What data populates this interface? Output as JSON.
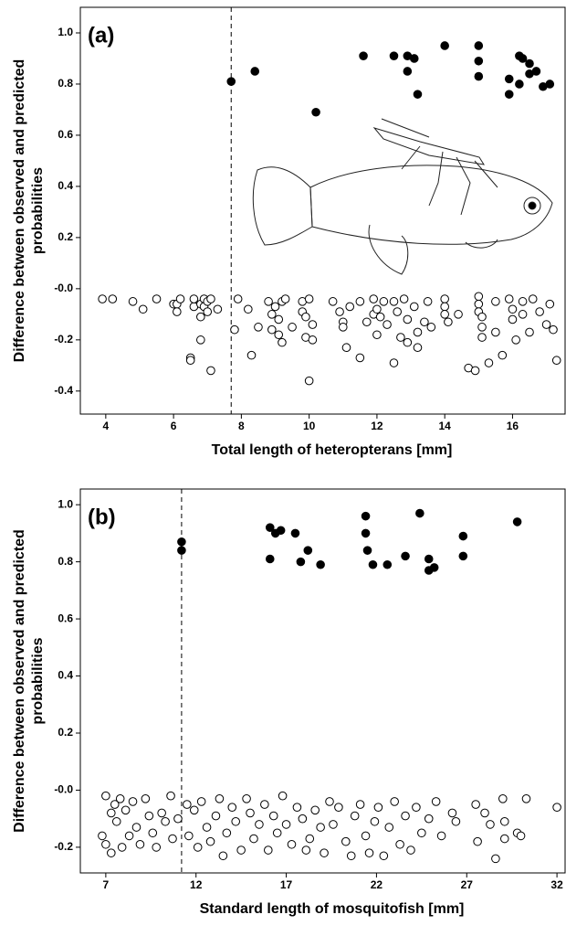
{
  "chart_data": [
    {
      "type": "scatter",
      "panel_label": "(a)",
      "xlabel": "Total length of heteropterans [mm]",
      "ylabel": [
        "Difference between observed and predicted",
        "probabilities"
      ],
      "xlim": [
        3.25,
        17.55
      ],
      "ylim": [
        -0.49,
        1.1
      ],
      "xticks": [
        4,
        6,
        8,
        10,
        12,
        14,
        16
      ],
      "yticks": [
        {
          "value": 1,
          "label": "1.0"
        },
        0.8,
        0.6,
        0.4,
        0.2,
        {
          "value": 0,
          "label": "-0.0"
        },
        -0.2,
        -0.4
      ],
      "vline": 7.7,
      "series": [
        {
          "filled": true,
          "color": "#000000",
          "x": [
            7.7,
            8.4,
            10.2,
            11.6,
            12.5,
            12.9,
            12.9,
            13.1,
            13.2,
            14.0,
            15.0,
            15.0,
            15.0,
            15.9,
            15.9,
            16.2,
            16.2,
            16.3,
            16.5,
            16.5,
            16.7,
            16.9,
            17.1
          ],
          "values": [
            0.81,
            0.85,
            0.69,
            0.91,
            0.91,
            0.91,
            0.85,
            0.9,
            0.76,
            0.95,
            0.95,
            0.89,
            0.83,
            0.82,
            0.76,
            0.91,
            0.8,
            0.9,
            0.88,
            0.84,
            0.85,
            0.79,
            0.8
          ]
        },
        {
          "filled": false,
          "color": "#000000",
          "x": [
            3.9,
            4.2,
            4.8,
            5.1,
            5.5,
            6.0,
            6.1,
            6.1,
            6.2,
            6.5,
            6.5,
            6.6,
            6.6,
            6.8,
            6.8,
            6.8,
            6.9,
            6.9,
            7.0,
            7.0,
            7.1,
            7.1,
            7.3,
            7.8,
            7.9,
            8.2,
            8.3,
            8.5,
            8.8,
            8.9,
            8.9,
            9.0,
            9.1,
            9.1,
            9.2,
            9.2,
            9.3,
            9.5,
            9.8,
            9.8,
            9.9,
            9.9,
            10.0,
            10.0,
            10.1,
            10.1,
            10.7,
            10.9,
            11.0,
            11.0,
            11.1,
            11.2,
            11.5,
            11.5,
            11.7,
            11.9,
            11.9,
            12.0,
            12.0,
            12.1,
            12.2,
            12.3,
            12.5,
            12.5,
            12.6,
            12.7,
            12.8,
            12.9,
            12.9,
            13.1,
            13.2,
            13.2,
            13.4,
            13.5,
            13.6,
            14.0,
            14.0,
            14.0,
            14.1,
            14.4,
            14.7,
            14.9,
            15.0,
            15.0,
            15.0,
            15.1,
            15.1,
            15.1,
            15.3,
            15.5,
            15.5,
            15.7,
            15.9,
            16.0,
            16.0,
            16.1,
            16.3,
            16.3,
            16.5,
            16.6,
            16.8,
            17.0,
            17.1,
            17.2,
            17.3
          ],
          "values": [
            -0.04,
            -0.04,
            -0.05,
            -0.08,
            -0.04,
            -0.06,
            -0.06,
            -0.09,
            -0.04,
            -0.27,
            -0.28,
            -0.07,
            -0.04,
            -0.06,
            -0.11,
            -0.2,
            -0.04,
            -0.07,
            -0.09,
            -0.05,
            -0.32,
            -0.04,
            -0.08,
            -0.16,
            -0.04,
            -0.08,
            -0.26,
            -0.15,
            -0.05,
            -0.1,
            -0.16,
            -0.07,
            -0.12,
            -0.18,
            -0.05,
            -0.21,
            -0.04,
            -0.15,
            -0.05,
            -0.09,
            -0.11,
            -0.19,
            -0.36,
            -0.04,
            -0.14,
            -0.2,
            -0.05,
            -0.09,
            -0.13,
            -0.15,
            -0.23,
            -0.07,
            -0.05,
            -0.27,
            -0.13,
            -0.04,
            -0.1,
            -0.08,
            -0.18,
            -0.11,
            -0.05,
            -0.14,
            -0.05,
            -0.29,
            -0.09,
            -0.19,
            -0.04,
            -0.12,
            -0.21,
            -0.07,
            -0.17,
            -0.23,
            -0.13,
            -0.05,
            -0.15,
            -0.04,
            -0.07,
            -0.1,
            -0.13,
            -0.1,
            -0.31,
            -0.32,
            -0.03,
            -0.06,
            -0.09,
            -0.11,
            -0.15,
            -0.19,
            -0.29,
            -0.05,
            -0.17,
            -0.26,
            -0.04,
            -0.08,
            -0.12,
            -0.2,
            -0.05,
            -0.1,
            -0.17,
            -0.04,
            -0.09,
            -0.14,
            -0.06,
            -0.16,
            -0.28
          ]
        }
      ]
    },
    {
      "type": "scatter",
      "panel_label": "(b)",
      "xlabel": "Standard length of mosquitofish [mm]",
      "ylabel": [
        "Difference between observed and predicted",
        "probabilities"
      ],
      "xlim": [
        5.59,
        32.45
      ],
      "ylim": [
        -0.29,
        1.055
      ],
      "xticks": [
        7,
        12,
        17,
        22,
        27,
        32
      ],
      "yticks": [
        {
          "value": 1,
          "label": "1.0"
        },
        0.8,
        0.6,
        0.4,
        0.2,
        {
          "value": 0,
          "label": "-0.0"
        },
        -0.2
      ],
      "vline": 11.2,
      "series": [
        {
          "filled": true,
          "color": "#000000",
          "x": [
            11.2,
            11.2,
            16.1,
            16.1,
            16.4,
            16.7,
            17.5,
            17.8,
            18.2,
            18.9,
            21.4,
            21.4,
            21.5,
            21.8,
            22.6,
            23.6,
            24.4,
            24.9,
            24.9,
            25.2,
            26.8,
            26.8,
            29.8
          ],
          "values": [
            0.87,
            0.84,
            0.92,
            0.81,
            0.9,
            0.91,
            0.9,
            0.8,
            0.84,
            0.79,
            0.96,
            0.9,
            0.84,
            0.79,
            0.79,
            0.82,
            0.97,
            0.81,
            0.77,
            0.78,
            0.89,
            0.82,
            0.94
          ]
        },
        {
          "filled": false,
          "color": "#000000",
          "x": [
            6.8,
            7.0,
            7.0,
            7.3,
            7.3,
            7.5,
            7.6,
            7.8,
            7.9,
            8.1,
            8.3,
            8.5,
            8.7,
            8.9,
            9.2,
            9.4,
            9.6,
            9.8,
            10.1,
            10.3,
            10.6,
            10.7,
            11.0,
            11.5,
            11.6,
            11.9,
            12.1,
            12.3,
            12.6,
            12.8,
            13.1,
            13.3,
            13.5,
            13.7,
            14.0,
            14.2,
            14.5,
            14.8,
            15.0,
            15.2,
            15.5,
            15.8,
            16.0,
            16.3,
            16.5,
            16.8,
            17.0,
            17.3,
            17.6,
            17.9,
            18.1,
            18.3,
            18.6,
            18.9,
            19.1,
            19.4,
            19.6,
            19.9,
            20.3,
            20.6,
            20.8,
            21.1,
            21.4,
            21.6,
            21.9,
            22.1,
            22.4,
            22.7,
            23.0,
            23.3,
            23.6,
            23.9,
            24.2,
            24.5,
            24.9,
            25.3,
            25.6,
            26.2,
            26.4,
            27.5,
            27.6,
            28.0,
            28.3,
            28.6,
            29.0,
            29.1,
            29.1,
            29.8,
            30.0,
            30.3,
            32.0
          ],
          "values": [
            -0.16,
            -0.02,
            -0.19,
            -0.08,
            -0.22,
            -0.05,
            -0.11,
            -0.03,
            -0.2,
            -0.07,
            -0.16,
            -0.04,
            -0.13,
            -0.19,
            -0.03,
            -0.09,
            -0.15,
            -0.2,
            -0.08,
            -0.11,
            -0.02,
            -0.17,
            -0.1,
            -0.05,
            -0.16,
            -0.07,
            -0.2,
            -0.04,
            -0.13,
            -0.18,
            -0.09,
            -0.03,
            -0.23,
            -0.15,
            -0.06,
            -0.11,
            -0.21,
            -0.03,
            -0.08,
            -0.17,
            -0.12,
            -0.05,
            -0.21,
            -0.09,
            -0.15,
            -0.02,
            -0.12,
            -0.19,
            -0.06,
            -0.1,
            -0.21,
            -0.17,
            -0.07,
            -0.13,
            -0.22,
            -0.04,
            -0.12,
            -0.06,
            -0.18,
            -0.23,
            -0.09,
            -0.05,
            -0.16,
            -0.22,
            -0.11,
            -0.06,
            -0.23,
            -0.13,
            -0.04,
            -0.19,
            -0.09,
            -0.21,
            -0.06,
            -0.15,
            -0.1,
            -0.04,
            -0.16,
            -0.08,
            -0.11,
            -0.05,
            -0.18,
            -0.08,
            -0.12,
            -0.24,
            -0.03,
            -0.11,
            -0.17,
            -0.15,
            -0.16,
            -0.03,
            -0.06
          ]
        }
      ]
    }
  ]
}
